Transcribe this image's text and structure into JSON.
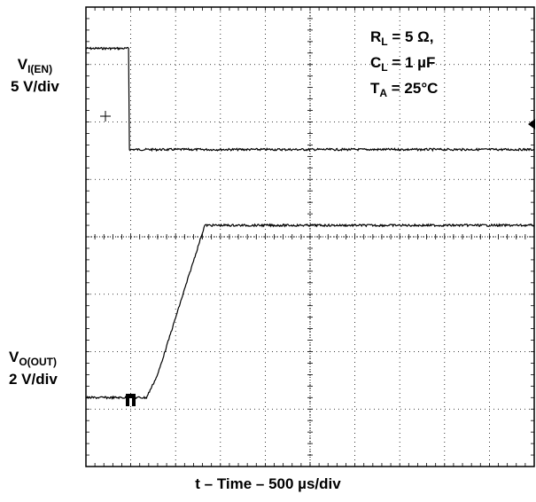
{
  "chart_data": {
    "type": "line",
    "title": "",
    "xlabel": "t – Time – 500 µs/div",
    "x_divisions": 10,
    "y_divisions": 8,
    "grid": true,
    "conditions": {
      "line1": "RL = 5 Ω,",
      "line2": "CL = 1 µF",
      "line3": "TA = 25°C"
    },
    "channel_labels": {
      "enable": {
        "name": "VI(EN)",
        "scale": "5 V/div"
      },
      "output": {
        "name": "VO(OUT)",
        "scale": "2 V/div"
      }
    },
    "series": [
      {
        "name": "VI(EN)",
        "unit_div": "div",
        "x_div": [
          0,
          0.95,
          0.97,
          10
        ],
        "y_div": [
          7.28,
          7.28,
          5.52,
          5.52
        ]
      },
      {
        "name": "VO(OUT)",
        "unit_div": "div",
        "x_div": [
          0,
          1.35,
          1.6,
          2.65,
          10
        ],
        "y_div": [
          1.2,
          1.2,
          1.6,
          4.2,
          4.2
        ]
      }
    ]
  }
}
